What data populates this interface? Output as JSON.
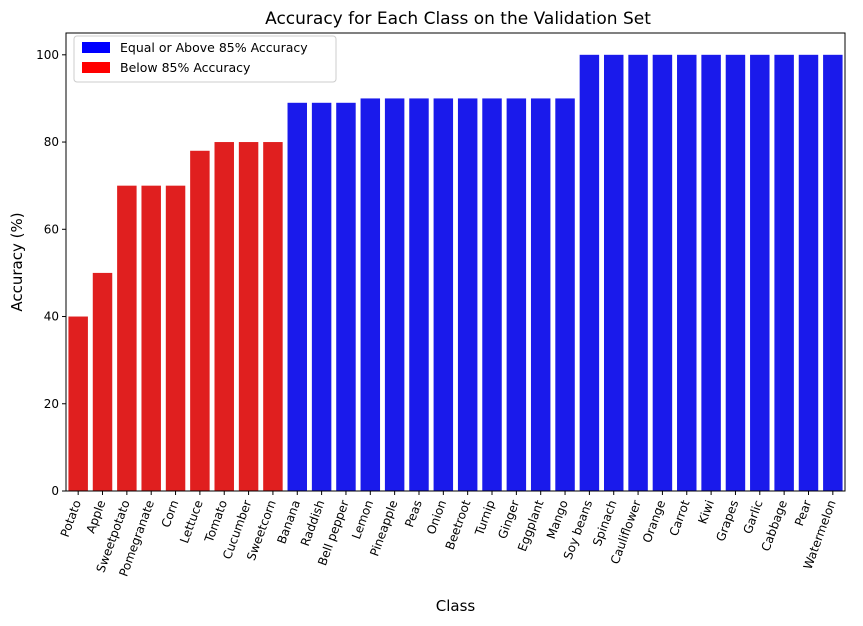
{
  "chart_data": {
    "type": "bar",
    "title": "Accuracy for Each Class on the Validation Set",
    "xlabel": "Class",
    "ylabel": "Accuracy (%)",
    "ylim": [
      0,
      105
    ],
    "yticks": [
      0,
      20,
      40,
      60,
      80,
      100
    ],
    "threshold": 85,
    "categories": [
      "Potato",
      "Apple",
      "Sweetpotato",
      "Pomegranate",
      "Corn",
      "Lettuce",
      "Tomato",
      "Cucumber",
      "Sweetcorn",
      "Banana",
      "Raddish",
      "Bell pepper",
      "Lemon",
      "Pineapple",
      "Peas",
      "Onion",
      "Beetroot",
      "Turnip",
      "Ginger",
      "Eggplant",
      "Mango",
      "Soy beans",
      "Spinach",
      "Cauliflower",
      "Orange",
      "Carrot",
      "Kiwi",
      "Grapes",
      "Garlic",
      "Cabbage",
      "Pear",
      "Watermelon"
    ],
    "values": [
      40,
      50,
      70,
      70,
      70,
      78,
      80,
      80,
      80,
      89,
      89,
      89,
      90,
      90,
      90,
      90,
      90,
      90,
      90,
      90,
      90,
      100,
      100,
      100,
      100,
      100,
      100,
      100,
      100,
      100,
      100,
      100
    ],
    "legend": {
      "placement": "top-left",
      "entries": [
        {
          "label": "Equal or Above 85% Accuracy",
          "color": "#0000ff"
        },
        {
          "label": "Below 85% Accuracy",
          "color": "#ff0000"
        }
      ]
    },
    "bar_colors": {
      "above": "#1a1aeb",
      "below": "#e01f1f"
    },
    "grid": false
  }
}
